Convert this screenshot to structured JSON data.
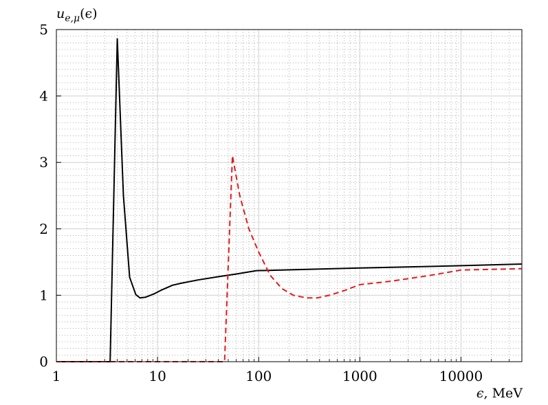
{
  "chart_data": {
    "type": "line",
    "title": "",
    "ylabel_main": "u",
    "ylabel_sub": "e,μ",
    "ylabel_arg": "(ϵ)",
    "xlabel_symbol": "ϵ",
    "xlabel_unit": ", MeV",
    "x_scale": "log",
    "xlim": [
      1,
      40000
    ],
    "ylim": [
      0,
      5
    ],
    "x_ticks": [
      1,
      10,
      100,
      1000,
      10000
    ],
    "x_tick_labels": [
      "1",
      "10",
      "100",
      "1000",
      "10000"
    ],
    "y_ticks": [
      0,
      1,
      2,
      3,
      4,
      5
    ],
    "y_tick_labels": [
      "0",
      "1",
      "2",
      "3",
      "4",
      "5"
    ],
    "grid": "major solid, minor dotted",
    "series": [
      {
        "color": "#000000",
        "dash": "solid",
        "points": [
          [
            1,
            0
          ],
          [
            3.4,
            0
          ],
          [
            4.0,
            4.86
          ],
          [
            4.6,
            2.5
          ],
          [
            5.3,
            1.27
          ],
          [
            6.1,
            1.01
          ],
          [
            6.7,
            0.96
          ],
          [
            7.6,
            0.97
          ],
          [
            9.2,
            1.02
          ],
          [
            11,
            1.08
          ],
          [
            14,
            1.15
          ],
          [
            17,
            1.18
          ],
          [
            25,
            1.23
          ],
          [
            40,
            1.28
          ],
          [
            60,
            1.32
          ],
          [
            95,
            1.37
          ],
          [
            300,
            1.39
          ],
          [
            1000,
            1.41
          ],
          [
            10000,
            1.445
          ],
          [
            40000,
            1.47
          ]
        ]
      },
      {
        "color": "#e41a1c",
        "dash": "dashed",
        "points": [
          [
            1,
            0
          ],
          [
            46,
            0
          ],
          [
            55,
            3.1
          ],
          [
            65,
            2.5
          ],
          [
            80,
            2.0
          ],
          [
            100,
            1.65
          ],
          [
            130,
            1.3
          ],
          [
            170,
            1.1
          ],
          [
            220,
            1.0
          ],
          [
            300,
            0.96
          ],
          [
            380,
            0.96
          ],
          [
            500,
            1.0
          ],
          [
            700,
            1.07
          ],
          [
            1000,
            1.16
          ],
          [
            2000,
            1.21
          ],
          [
            5000,
            1.3
          ],
          [
            10000,
            1.38
          ],
          [
            20000,
            1.39
          ],
          [
            40000,
            1.4
          ]
        ]
      }
    ]
  }
}
